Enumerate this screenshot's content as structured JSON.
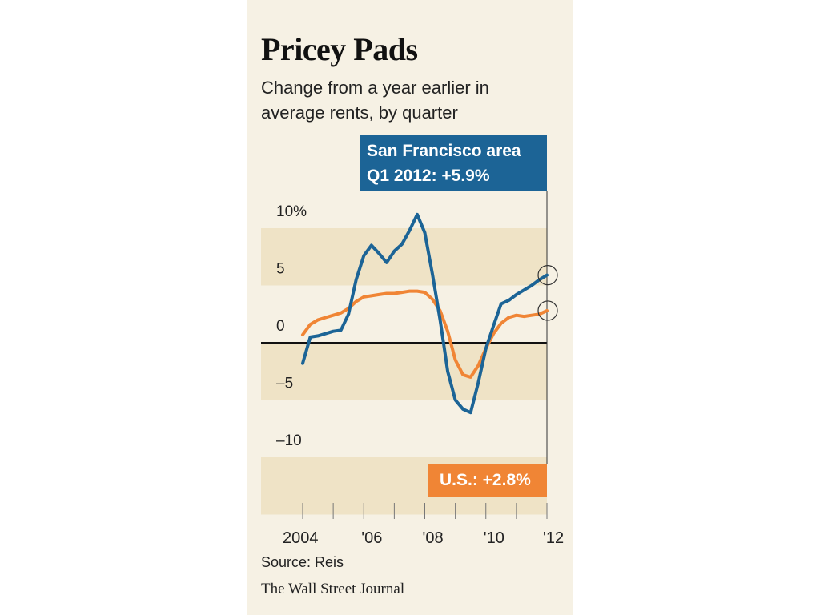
{
  "title": "Pricey Pads",
  "subtitle": "Change from a year earlier in average rents, by quarter",
  "callout_sf_line1": "San Francisco area",
  "callout_sf_line2": "Q1 2012:  +5.9%",
  "callout_us": "U.S.: +2.8%",
  "source": "Source: Reis",
  "credit": "The Wall Street Journal",
  "colors": {
    "sf": "#1c6496",
    "us": "#f08535",
    "band": "#efe3c6",
    "panel": "#f6f1e4"
  },
  "chart_data": {
    "type": "line",
    "ylim": [
      -15,
      12
    ],
    "xlim": [
      2004,
      2012.25
    ],
    "y_ticks": [
      {
        "value": 10,
        "label": "10%"
      },
      {
        "value": 5,
        "label": "5"
      },
      {
        "value": 0,
        "label": "0"
      },
      {
        "value": -5,
        "label": "–5"
      },
      {
        "value": -10,
        "label": "–10"
      }
    ],
    "x_ticks": [
      {
        "value": 2004,
        "label": "2004"
      },
      {
        "value": 2006,
        "label": "'06"
      },
      {
        "value": 2008,
        "label": "'08"
      },
      {
        "value": 2010,
        "label": "'10"
      },
      {
        "value": 2012,
        "label": "'12"
      }
    ],
    "series": [
      {
        "name": "San Francisco area",
        "x": [
          2004,
          2004.25,
          2004.5,
          2004.75,
          2005,
          2005.25,
          2005.5,
          2005.75,
          2006,
          2006.25,
          2006.5,
          2006.75,
          2007,
          2007.25,
          2007.5,
          2007.75,
          2008,
          2008.25,
          2008.5,
          2008.75,
          2009,
          2009.25,
          2009.5,
          2009.75,
          2010,
          2010.25,
          2010.5,
          2010.75,
          2011,
          2011.25,
          2011.5,
          2011.75,
          2012
        ],
        "values": [
          -1.8,
          0.5,
          0.6,
          0.8,
          1.0,
          1.1,
          2.5,
          5.5,
          7.6,
          8.5,
          7.8,
          7.0,
          8.0,
          8.6,
          9.8,
          11.2,
          9.6,
          6.0,
          2.0,
          -2.5,
          -5.0,
          -5.8,
          -6.1,
          -3.5,
          -0.5,
          1.5,
          3.4,
          3.7,
          4.2,
          4.6,
          5.0,
          5.5,
          5.9
        ]
      },
      {
        "name": "U.S.",
        "x": [
          2004,
          2004.25,
          2004.5,
          2004.75,
          2005,
          2005.25,
          2005.5,
          2005.75,
          2006,
          2006.25,
          2006.5,
          2006.75,
          2007,
          2007.25,
          2007.5,
          2007.75,
          2008,
          2008.25,
          2008.5,
          2008.75,
          2009,
          2009.25,
          2009.5,
          2009.75,
          2010,
          2010.25,
          2010.5,
          2010.75,
          2011,
          2011.25,
          2011.5,
          2011.75,
          2012
        ],
        "values": [
          0.7,
          1.6,
          2.0,
          2.2,
          2.4,
          2.6,
          3.0,
          3.6,
          4.0,
          4.1,
          4.2,
          4.3,
          4.3,
          4.4,
          4.5,
          4.5,
          4.4,
          3.8,
          2.8,
          1.0,
          -1.5,
          -2.8,
          -3.0,
          -2.0,
          -0.5,
          0.8,
          1.7,
          2.2,
          2.4,
          2.3,
          2.4,
          2.5,
          2.8
        ]
      }
    ],
    "bands": [
      [
        5,
        10
      ],
      [
        -5,
        0
      ],
      [
        -15,
        -10
      ]
    ]
  }
}
